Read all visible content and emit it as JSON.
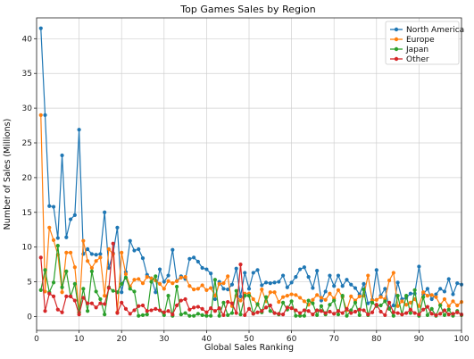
{
  "chart_data": {
    "type": "line",
    "title": "Top Games Sales by Region",
    "xlabel": "Global Sales Ranking",
    "ylabel": "Number of Sales (Millions)",
    "xlim": [
      0,
      100
    ],
    "ylim": [
      -2,
      43
    ],
    "xticks": [
      0,
      10,
      20,
      30,
      40,
      50,
      60,
      70,
      80,
      90,
      100
    ],
    "yticks": [
      0,
      5,
      10,
      15,
      20,
      25,
      30,
      35,
      40
    ],
    "grid": true,
    "legend_position": "top-right",
    "series": [
      {
        "name": "North America",
        "color": "#1f77b4",
        "values": [
          41.5,
          29.0,
          15.9,
          15.8,
          11.3,
          23.2,
          11.4,
          14.0,
          14.6,
          26.9,
          9.0,
          9.7,
          9.0,
          8.9,
          9.0,
          15.0,
          7.0,
          9.1,
          12.8,
          3.5,
          6.4,
          10.9,
          9.5,
          9.7,
          8.4,
          6.0,
          5.5,
          3.5,
          6.8,
          5.0,
          5.9,
          9.6,
          5.1,
          5.8,
          5.4,
          8.3,
          8.5,
          7.9,
          7.0,
          6.8,
          6.2,
          2.5,
          5.0,
          4.0,
          3.9,
          4.6,
          6.9,
          2.9,
          6.3,
          4.0,
          6.3,
          6.7,
          4.5,
          4.9,
          4.8,
          4.9,
          5.0,
          5.9,
          4.2,
          4.9,
          5.7,
          6.8,
          7.1,
          5.7,
          4.1,
          6.6,
          2.3,
          3.6,
          5.9,
          4.4,
          5.9,
          4.4,
          5.3,
          4.6,
          4.1,
          3.2,
          4.7,
          1.9,
          2.4,
          6.7,
          3.0,
          4.0,
          1.2,
          1.6,
          4.9,
          2.5,
          2.7,
          3.3,
          3.3,
          7.2,
          3.2,
          4.0,
          2.5,
          3.2,
          4.0,
          3.6,
          5.4,
          3.2,
          4.8,
          4.6
        ]
      },
      {
        "name": "Europe",
        "color": "#ff7f0e",
        "values": [
          29.0,
          3.6,
          12.8,
          11.0,
          8.9,
          3.5,
          9.2,
          9.2,
          7.1,
          0.6,
          10.9,
          8.0,
          7.0,
          8.0,
          8.5,
          3.0,
          9.7,
          9.0,
          0.6,
          9.2,
          6.1,
          4.3,
          5.3,
          5.4,
          4.8,
          5.7,
          5.5,
          5.2,
          4.7,
          4.0,
          5.1,
          4.8,
          5.1,
          5.6,
          5.7,
          4.4,
          3.9,
          4.0,
          4.5,
          3.8,
          4.1,
          3.0,
          4.7,
          4.8,
          5.8,
          1.5,
          3.0,
          2.3,
          3.3,
          3.3,
          2.5,
          1.7,
          3.9,
          2.2,
          3.5,
          3.5,
          2.1,
          2.8,
          3.0,
          3.2,
          3.1,
          2.7,
          2.2,
          1.7,
          2.4,
          3.1,
          2.7,
          2.4,
          3.3,
          2.6,
          3.8,
          2.8,
          0.9,
          2.9,
          2.3,
          2.9,
          3.0,
          5.9,
          2.3,
          2.4,
          2.8,
          2.5,
          5.2,
          6.3,
          1.5,
          2.2,
          1.7,
          2.0,
          2.5,
          1.5,
          3.5,
          3.0,
          3.1,
          2.8,
          1.7,
          2.5,
          1.5,
          2.2,
          1.6,
          2.1
        ]
      },
      {
        "name": "Japan",
        "color": "#2ca02c",
        "values": [
          3.8,
          6.7,
          3.5,
          4.9,
          10.2,
          4.2,
          6.5,
          2.9,
          4.7,
          0.6,
          4.0,
          0.8,
          6.5,
          3.6,
          2.5,
          0.3,
          4.2,
          3.7,
          3.5,
          4.7,
          5.6,
          4.0,
          3.6,
          0.1,
          0.2,
          0.3,
          5.0,
          5.8,
          0.9,
          0.2,
          3.0,
          0.1,
          4.3,
          0.3,
          0.5,
          0.1,
          0.1,
          0.4,
          0.2,
          0.1,
          0.1,
          5.3,
          0.1,
          2.0,
          0.2,
          0.5,
          3.7,
          0.3,
          3.0,
          3.0,
          0.4,
          1.8,
          0.6,
          2.8,
          0.8,
          0.5,
          0.3,
          2.0,
          1.0,
          2.2,
          0.1,
          0.1,
          0.1,
          2.3,
          1.9,
          0.2,
          1.5,
          0.3,
          1.7,
          2.3,
          0.3,
          3.0,
          0.1,
          0.9,
          2.0,
          0.2,
          3.9,
          0.2,
          2.0,
          1.5,
          1.6,
          2.2,
          1.1,
          0.1,
          3.0,
          0.3,
          3.0,
          0.5,
          3.8,
          0.1,
          2.8,
          0.2,
          1.1,
          0.1,
          1.6,
          0.2,
          1.0,
          0.1,
          0.8,
          0.2
        ]
      },
      {
        "name": "Other",
        "color": "#d62728",
        "values": [
          8.5,
          0.8,
          3.3,
          2.9,
          1.0,
          0.6,
          2.9,
          2.9,
          2.3,
          0.3,
          2.7,
          1.9,
          1.9,
          1.3,
          1.9,
          1.8,
          4.1,
          10.5,
          0.5,
          2.0,
          1.1,
          0.4,
          0.9,
          1.5,
          1.6,
          0.8,
          0.9,
          1.1,
          0.9,
          0.6,
          0.8,
          0.3,
          1.6,
          2.3,
          2.5,
          1.0,
          1.3,
          1.4,
          1.1,
          0.6,
          1.2,
          0.8,
          1.2,
          0.2,
          2.1,
          1.9,
          0.5,
          7.5,
          0.2,
          1.1,
          0.4,
          0.6,
          0.8,
          1.3,
          1.6,
          0.5,
          0.4,
          0.3,
          1.3,
          1.2,
          0.9,
          0.5,
          0.9,
          0.8,
          0.3,
          0.9,
          0.8,
          0.5,
          0.7,
          0.4,
          0.8,
          0.5,
          1.1,
          0.5,
          0.7,
          1.0,
          0.9,
          0.3,
          0.6,
          1.7,
          0.7,
          0.2,
          2.0,
          0.6,
          0.5,
          0.3,
          0.5,
          1.0,
          0.5,
          0.3,
          1.0,
          1.4,
          0.4,
          0.2,
          0.4,
          0.9,
          0.3,
          0.4,
          0.6,
          0.3
        ]
      }
    ]
  }
}
